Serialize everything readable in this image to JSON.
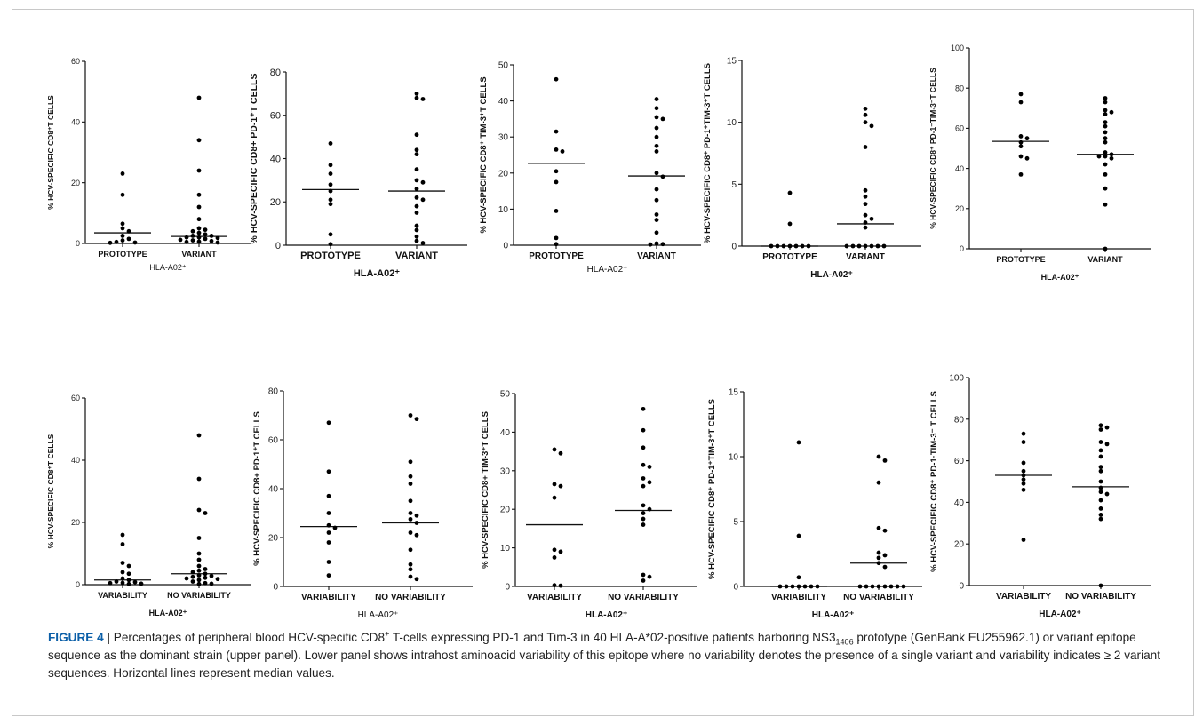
{
  "caption": {
    "label": "FIGURE 4",
    "sep": " | ",
    "parts": [
      {
        "t": "Percentages of peripheral blood HCV-specific CD8"
      },
      {
        "t": "+",
        "sup": true
      },
      {
        "t": " T-cells expressing PD-1 and Tim-3 in 40 HLA-A*02-positive patients harboring NS3"
      },
      {
        "t": "1406",
        "sub": true
      },
      {
        "t": " prototype (GenBank EU255962.1) or variant epitope sequence as the dominant strain (upper panel). Lower panel shows intrahost aminoacid variability of this epitope where no variability denotes the presence of a single variant and variability indicates ≥ 2 variant sequences. Horizontal lines represent median values."
      }
    ]
  },
  "chart_data": [
    {
      "type": "scatter",
      "panel": "upper-1",
      "ylabel": "% HCV-SPECIFIC CD8⁺T CELLS",
      "xlabel": "HLA-A02⁺",
      "categories": [
        "PROTOTYPE",
        "VARIANT"
      ],
      "ylim": [
        0,
        60
      ],
      "yticks": [
        0,
        20,
        40,
        60
      ],
      "series": [
        {
          "values": [
            23,
            16,
            6.5,
            5,
            4,
            2.5,
            1.5,
            1,
            0.5,
            0.3,
            0.2
          ]
        },
        {
          "values": [
            48,
            34,
            24,
            16,
            12,
            8,
            5,
            4.5,
            4,
            3.5,
            3,
            2.5,
            2.5,
            2,
            2,
            1.8,
            1.5,
            1.2,
            1,
            0.8,
            0.6,
            0.5,
            0.3
          ]
        }
      ],
      "medians": [
        3.5,
        2.3
      ]
    },
    {
      "type": "scatter",
      "panel": "upper-2",
      "ylabel": "% HCV-SPECIFIC CD8+ PD-1⁺T CELLS",
      "xlabel": "HLA-A02⁺",
      "categories": [
        "PROTOTYPE",
        "VARIANT"
      ],
      "ylim": [
        0,
        80
      ],
      "yticks": [
        0,
        20,
        40,
        60,
        80
      ],
      "series": [
        {
          "values": [
            47,
            37,
            33,
            28,
            25,
            21,
            19,
            5,
            0.5
          ]
        },
        {
          "values": [
            70,
            68,
            67.5,
            51,
            44,
            42,
            35,
            30,
            29,
            26,
            22,
            21,
            18,
            15,
            9,
            7,
            4,
            2,
            1
          ]
        }
      ],
      "medians": [
        25.7,
        25
      ]
    },
    {
      "type": "scatter",
      "panel": "upper-3",
      "ylabel": "% HCV-SPECIFIC CD8⁺ TIM-3⁺T CELLS",
      "xlabel": "HLA-A02⁺",
      "categories": [
        "PROTOTYPE",
        "VARIANT"
      ],
      "ylim": [
        0,
        50
      ],
      "yticks": [
        0,
        10,
        20,
        30,
        40,
        50
      ],
      "series": [
        {
          "values": [
            46,
            31.5,
            26.5,
            26,
            20.5,
            17.5,
            9.5,
            2,
            0.3
          ]
        },
        {
          "values": [
            40.5,
            38,
            35.5,
            35,
            32.5,
            30,
            27.5,
            26,
            20,
            19,
            15.5,
            12.5,
            8.5,
            7,
            3.5,
            0.5,
            0.3,
            0.2
          ]
        }
      ],
      "medians": [
        22.7,
        19.2
      ]
    },
    {
      "type": "scatter",
      "panel": "upper-4",
      "ylabel": "% HCV-SPECIFIC CD8⁺ PD-1⁺TIM-3⁺T CELLS",
      "xlabel": "HLA-A02⁺",
      "categories": [
        "PROTOTYPE",
        "VARIANT"
      ],
      "ylim": [
        0,
        15
      ],
      "yticks": [
        0,
        5,
        10,
        15
      ],
      "series": [
        {
          "values": [
            4.3,
            1.8,
            0,
            0,
            0,
            0,
            0,
            0,
            0
          ]
        },
        {
          "values": [
            11.1,
            10.6,
            10,
            9.7,
            8,
            4.5,
            4,
            3.4,
            2.5,
            2.2,
            1.9,
            1.5,
            0,
            0,
            0,
            0,
            0,
            0,
            0
          ]
        }
      ],
      "medians": [
        0,
        1.8
      ]
    },
    {
      "type": "scatter",
      "panel": "upper-5",
      "ylabel": "% HCV-SPECIFIC CD8⁺ PD-1⁻TIM-3⁻T CELLS",
      "xlabel": "HLA-A02⁺",
      "categories": [
        "PROTOTYPE",
        "VARIANT"
      ],
      "ylim": [
        0,
        100
      ],
      "yticks": [
        0,
        20,
        40,
        60,
        80,
        100
      ],
      "series": [
        {
          "values": [
            77,
            73,
            56,
            55,
            53,
            51,
            46,
            45,
            37
          ]
        },
        {
          "values": [
            75,
            73,
            69,
            68,
            67,
            63,
            61,
            58,
            55,
            53,
            48,
            47,
            46,
            46,
            45,
            42,
            37,
            30,
            22,
            0
          ]
        }
      ],
      "medians": [
        53.5,
        47
      ]
    },
    {
      "type": "scatter",
      "panel": "lower-1",
      "ylabel": "% HCV-SPECIFIC CD8⁺T CELLS",
      "xlabel": "HLA-A02⁺",
      "categories": [
        "VARIABILITY",
        "NO VARIABILITY"
      ],
      "ylim": [
        0,
        60
      ],
      "yticks": [
        0,
        20,
        40,
        60
      ],
      "series": [
        {
          "values": [
            16,
            13,
            7,
            6,
            4,
            3.5,
            2,
            1.5,
            1,
            0.8,
            0.6,
            0.5,
            0.3,
            0.2
          ]
        },
        {
          "values": [
            48,
            34,
            24,
            23,
            15,
            10,
            8,
            6,
            5,
            4.5,
            4,
            3.5,
            3,
            2.8,
            2.5,
            2.2,
            2,
            1.8,
            1.5,
            1,
            0.5,
            0.3,
            0.2
          ]
        }
      ],
      "medians": [
        1.5,
        3.5
      ]
    },
    {
      "type": "scatter",
      "panel": "lower-2",
      "ylabel": "% HCV-SPECIFIC CD8+ PD-1⁺T CELLS",
      "xlabel": "HLA-A02⁺",
      "categories": [
        "VARIABILITY",
        "NO VARIABILITY"
      ],
      "ylim": [
        0,
        80
      ],
      "yticks": [
        0,
        20,
        40,
        60,
        80
      ],
      "series": [
        {
          "values": [
            67,
            47,
            37,
            30,
            25,
            24,
            22,
            18,
            10,
            4.5
          ]
        },
        {
          "values": [
            70,
            68.5,
            51,
            45,
            42,
            35,
            30,
            29,
            27.5,
            26,
            22,
            21,
            15,
            9,
            7,
            4,
            3
          ]
        }
      ],
      "medians": [
        24.5,
        26
      ]
    },
    {
      "type": "scatter",
      "panel": "lower-3",
      "ylabel": "% HCV-SPECIFIC CD8+ TIM-3⁺T CELLS",
      "xlabel": "HLA-A02⁺",
      "categories": [
        "VARIABILITY",
        "NO VARIABILITY"
      ],
      "ylim": [
        0,
        50
      ],
      "yticks": [
        0,
        10,
        20,
        30,
        40,
        50
      ],
      "series": [
        {
          "values": [
            35.5,
            34.5,
            26.5,
            26,
            23,
            9.5,
            9,
            7.5,
            0.3,
            0.2
          ]
        },
        {
          "values": [
            46,
            40.5,
            36,
            31.5,
            31,
            28,
            27,
            26,
            21,
            20,
            19,
            17.5,
            16,
            3,
            2.5,
            1.5
          ]
        }
      ],
      "medians": [
        16,
        19.7
      ]
    },
    {
      "type": "scatter",
      "panel": "lower-4",
      "ylabel": "% HCV-SPECIFIC CD8⁺ PD-1⁺TIM-3⁺T CELLS",
      "xlabel": "HLA-A02⁺",
      "categories": [
        "VARIABILITY",
        "NO VARIABILITY"
      ],
      "ylim": [
        0,
        15
      ],
      "yticks": [
        0,
        5,
        10,
        15
      ],
      "series": [
        {
          "values": [
            11.1,
            3.9,
            0.7,
            0,
            0,
            0,
            0,
            0,
            0,
            0
          ]
        },
        {
          "values": [
            10,
            9.7,
            8,
            4.5,
            4.3,
            2.6,
            2.4,
            2.2,
            1.8,
            1.5,
            0,
            0,
            0,
            0,
            0,
            0,
            0,
            0
          ]
        }
      ],
      "medians": [
        0,
        1.8
      ]
    },
    {
      "type": "scatter",
      "panel": "lower-5",
      "ylabel": "% HCV-SPECIFIC CD8⁺ PD-1·TIM-3⁻ T CELLS",
      "xlabel": "HLA-A02⁺",
      "categories": [
        "VARIABILITY",
        "NO VARIABILITY"
      ],
      "ylim": [
        0,
        100
      ],
      "yticks": [
        0,
        20,
        40,
        60,
        80,
        100
      ],
      "series": [
        {
          "values": [
            73,
            69,
            59,
            55,
            53,
            51,
            49,
            46,
            22
          ]
        },
        {
          "values": [
            77,
            76,
            75,
            69,
            68,
            65,
            62,
            57,
            55,
            50,
            47,
            45,
            44,
            41,
            37,
            34,
            32,
            0
          ]
        }
      ],
      "medians": [
        53,
        47.5
      ]
    }
  ]
}
